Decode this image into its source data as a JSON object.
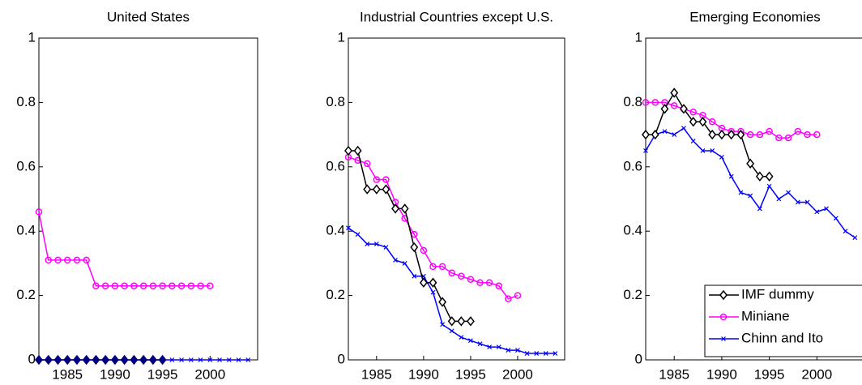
{
  "chart_data": [
    {
      "type": "line",
      "title": "United States",
      "x": [
        1982,
        1983,
        1984,
        1985,
        1986,
        1987,
        1988,
        1989,
        1990,
        1991,
        1992,
        1993,
        1994,
        1995,
        1996,
        1997,
        1998,
        1999,
        2000,
        2001,
        2002,
        2003,
        2004
      ],
      "xlim": [
        1982,
        2005
      ],
      "xticks": [
        1985,
        1990,
        1995,
        2000
      ],
      "ylim": [
        0,
        1
      ],
      "yticks": [
        0,
        0.2,
        0.4,
        0.6,
        0.8,
        1
      ],
      "series": [
        {
          "name": "IMF dummy",
          "color": "#000080",
          "marker": "diamond-filled",
          "values": [
            0,
            0,
            0,
            0,
            0,
            0,
            0,
            0,
            0,
            0,
            0,
            0,
            0,
            0,
            null,
            null,
            null,
            null,
            null,
            null,
            null,
            null,
            null
          ]
        },
        {
          "name": "Miniane",
          "color": "#ff00ff",
          "marker": "circle",
          "values": [
            0.46,
            0.31,
            0.31,
            0.31,
            0.31,
            0.31,
            0.23,
            0.23,
            0.23,
            0.23,
            0.23,
            0.23,
            0.23,
            0.23,
            0.23,
            0.23,
            0.23,
            0.23,
            0.23,
            null,
            null,
            null,
            null
          ]
        },
        {
          "name": "Chinn and Ito",
          "color": "#0000ff",
          "marker": "x",
          "values": [
            0,
            0,
            0,
            0,
            0,
            0,
            0,
            0,
            0,
            0,
            0,
            0,
            0,
            0,
            0,
            0,
            0,
            0,
            0,
            0,
            0,
            0,
            0
          ]
        }
      ]
    },
    {
      "type": "line",
      "title": "Industrial Countries except U.S.",
      "x": [
        1982,
        1983,
        1984,
        1985,
        1986,
        1987,
        1988,
        1989,
        1990,
        1991,
        1992,
        1993,
        1994,
        1995,
        1996,
        1997,
        1998,
        1999,
        2000,
        2001,
        2002,
        2003,
        2004
      ],
      "xlim": [
        1982,
        2005
      ],
      "xticks": [
        1985,
        1990,
        1995,
        2000
      ],
      "ylim": [
        0,
        1
      ],
      "yticks": [
        0,
        0.2,
        0.4,
        0.6,
        0.8,
        1
      ],
      "series": [
        {
          "name": "IMF dummy",
          "color": "#000000",
          "marker": "diamond",
          "values": [
            0.65,
            0.65,
            0.53,
            0.53,
            0.53,
            0.47,
            0.47,
            0.35,
            0.24,
            0.24,
            0.18,
            0.12,
            0.12,
            0.12,
            null,
            null,
            null,
            null,
            null,
            null,
            null,
            null,
            null
          ]
        },
        {
          "name": "Miniane",
          "color": "#ff00ff",
          "marker": "circle",
          "values": [
            0.63,
            0.62,
            0.61,
            0.56,
            0.56,
            0.49,
            0.44,
            0.39,
            0.34,
            0.29,
            0.29,
            0.27,
            0.26,
            0.25,
            0.24,
            0.24,
            0.23,
            0.19,
            0.2,
            null,
            null,
            null,
            null
          ]
        },
        {
          "name": "Chinn and Ito",
          "color": "#0000ff",
          "marker": "x",
          "values": [
            0.41,
            0.39,
            0.36,
            0.36,
            0.35,
            0.31,
            0.3,
            0.26,
            0.26,
            0.21,
            0.11,
            0.09,
            0.07,
            0.06,
            0.05,
            0.04,
            0.04,
            0.03,
            0.03,
            0.02,
            0.02,
            0.02,
            0.02
          ]
        }
      ]
    },
    {
      "type": "line",
      "title": "Emerging Economies",
      "x": [
        1982,
        1983,
        1984,
        1985,
        1986,
        1987,
        1988,
        1989,
        1990,
        1991,
        1992,
        1993,
        1994,
        1995,
        1996,
        1997,
        1998,
        1999,
        2000,
        2001,
        2002,
        2003,
        2004
      ],
      "xlim": [
        1982,
        2005
      ],
      "xticks": [
        1985,
        1990,
        1995,
        2000
      ],
      "ylim": [
        0,
        1
      ],
      "yticks": [
        0,
        0.2,
        0.4,
        0.6,
        0.8,
        1
      ],
      "legend": "lower right",
      "series": [
        {
          "name": "IMF dummy",
          "color": "#000000",
          "marker": "diamond",
          "values": [
            0.7,
            0.7,
            0.78,
            0.83,
            0.78,
            0.74,
            0.74,
            0.7,
            0.7,
            0.7,
            0.7,
            0.61,
            0.57,
            0.57,
            null,
            null,
            null,
            null,
            null,
            null,
            null,
            null,
            null
          ]
        },
        {
          "name": "Miniane",
          "color": "#ff00ff",
          "marker": "circle",
          "values": [
            0.8,
            0.8,
            0.8,
            0.79,
            0.78,
            0.77,
            0.76,
            0.74,
            0.72,
            0.71,
            0.71,
            0.7,
            0.7,
            0.71,
            0.69,
            0.69,
            0.71,
            0.7,
            0.7,
            null,
            null,
            null,
            null
          ]
        },
        {
          "name": "Chinn and Ito",
          "color": "#0000ff",
          "marker": "x",
          "values": [
            0.65,
            0.7,
            0.71,
            0.7,
            0.72,
            0.68,
            0.65,
            0.65,
            0.63,
            0.57,
            0.52,
            0.51,
            0.47,
            0.54,
            0.5,
            0.52,
            0.49,
            0.49,
            0.46,
            0.47,
            0.44,
            0.4,
            0.38
          ]
        }
      ]
    }
  ]
}
